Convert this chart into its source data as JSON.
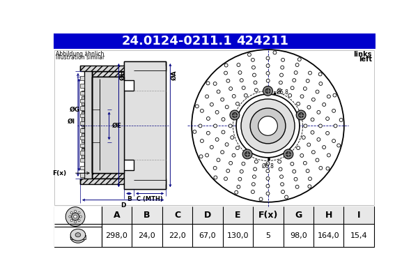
{
  "title_part": "24.0124-0211.1",
  "title_code": "424211",
  "header_bg": "#0000cc",
  "header_text_color": "#ffffff",
  "bg_color": "#ffffff",
  "note_line1": "Abbildung ähnlich",
  "note_line2": "Illustration similar",
  "side_text_line1": "links",
  "side_text_line2": "left",
  "table_headers": [
    "A",
    "B",
    "C",
    "D",
    "E",
    "F(x)",
    "G",
    "H",
    "I"
  ],
  "table_values": [
    "298,0",
    "24,0",
    "22,0",
    "67,0",
    "130,0",
    "5",
    "98,0",
    "164,0",
    "15,4"
  ],
  "bolt_label": "Ø6,8",
  "dim_color": "#000080",
  "watermark_color": "#cccccc"
}
